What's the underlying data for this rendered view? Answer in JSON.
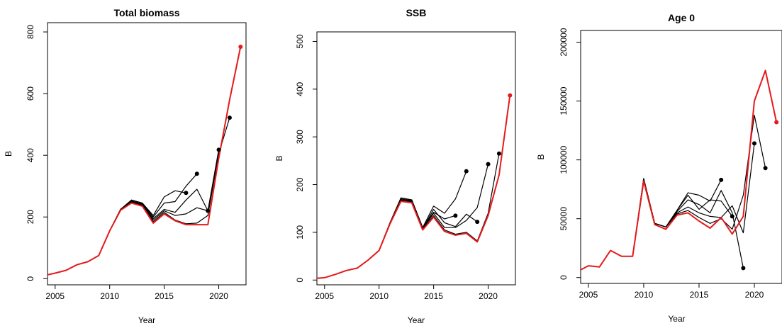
{
  "chart_data": [
    {
      "type": "line",
      "title": "Total biomass",
      "xlabel": "Year",
      "ylabel": "B",
      "xlim": [
        2004.3,
        2022.5
      ],
      "ylim": [
        -20,
        830
      ],
      "xticks": [
        "2005",
        "2010",
        "2015",
        "2020"
      ],
      "yticks": [
        "0",
        "200",
        "400",
        "600",
        "800"
      ],
      "series": [
        {
          "role": "peel",
          "color": "#000000",
          "x": [
            2004,
            2005,
            2006,
            2007,
            2008,
            2009,
            2010,
            2011,
            2012,
            2013,
            2014,
            2015,
            2016,
            2017
          ],
          "y": [
            10,
            18,
            27,
            45,
            55,
            75,
            155,
            225,
            255,
            245,
            205,
            265,
            285,
            278
          ]
        },
        {
          "role": "peel",
          "color": "#000000",
          "x": [
            2004,
            2005,
            2006,
            2007,
            2008,
            2009,
            2010,
            2011,
            2012,
            2013,
            2014,
            2015,
            2016,
            2017,
            2018
          ],
          "y": [
            10,
            18,
            27,
            45,
            55,
            75,
            155,
            225,
            255,
            245,
            200,
            245,
            250,
            300,
            340
          ]
        },
        {
          "role": "peel",
          "color": "#000000",
          "x": [
            2004,
            2005,
            2006,
            2007,
            2008,
            2009,
            2010,
            2011,
            2012,
            2013,
            2014,
            2015,
            2016,
            2017,
            2018,
            2019
          ],
          "y": [
            10,
            18,
            27,
            45,
            55,
            75,
            155,
            225,
            252,
            242,
            195,
            225,
            215,
            255,
            290,
            220
          ]
        },
        {
          "role": "peel",
          "color": "#000000",
          "x": [
            2004,
            2005,
            2006,
            2007,
            2008,
            2009,
            2010,
            2011,
            2012,
            2013,
            2014,
            2015,
            2016,
            2017,
            2018,
            2019,
            2020
          ],
          "y": [
            10,
            18,
            27,
            45,
            55,
            75,
            155,
            225,
            250,
            240,
            190,
            220,
            205,
            210,
            230,
            220,
            418
          ]
        },
        {
          "role": "peel",
          "color": "#000000",
          "x": [
            2004,
            2005,
            2006,
            2007,
            2008,
            2009,
            2010,
            2011,
            2012,
            2013,
            2014,
            2015,
            2016,
            2017,
            2018,
            2019,
            2020,
            2021
          ],
          "y": [
            10,
            18,
            27,
            45,
            55,
            75,
            155,
            225,
            248,
            238,
            185,
            215,
            190,
            178,
            180,
            205,
            405,
            522
          ]
        },
        {
          "role": "current",
          "color": "#e41a1c",
          "x": [
            2004,
            2005,
            2006,
            2007,
            2008,
            2009,
            2010,
            2011,
            2012,
            2013,
            2014,
            2015,
            2016,
            2017,
            2018,
            2019,
            2020,
            2021,
            2022
          ],
          "y": [
            10,
            18,
            27,
            45,
            55,
            75,
            155,
            222,
            245,
            235,
            180,
            210,
            188,
            175,
            175,
            175,
            390,
            580,
            752
          ]
        }
      ]
    },
    {
      "type": "line",
      "title": "SSB",
      "xlabel": "Year",
      "ylabel": "B",
      "xlim": [
        2004.3,
        2022.5
      ],
      "ylim": [
        -10,
        520
      ],
      "xticks": [
        "2005",
        "2010",
        "2015",
        "2020"
      ],
      "yticks": [
        "0",
        "100",
        "200",
        "300",
        "400",
        "500"
      ],
      "series": [
        {
          "role": "peel",
          "color": "#000000",
          "x": [
            2004,
            2005,
            2006,
            2007,
            2008,
            2009,
            2010,
            2011,
            2012,
            2013,
            2014,
            2015,
            2016,
            2017
          ],
          "y": [
            3,
            5,
            12,
            20,
            25,
            42,
            62,
            120,
            172,
            168,
            110,
            142,
            128,
            135
          ]
        },
        {
          "role": "peel",
          "color": "#000000",
          "x": [
            2004,
            2005,
            2006,
            2007,
            2008,
            2009,
            2010,
            2011,
            2012,
            2013,
            2014,
            2015,
            2016,
            2017,
            2018
          ],
          "y": [
            3,
            5,
            12,
            20,
            25,
            42,
            62,
            120,
            172,
            168,
            110,
            155,
            140,
            170,
            228
          ]
        },
        {
          "role": "peel",
          "color": "#000000",
          "x": [
            2004,
            2005,
            2006,
            2007,
            2008,
            2009,
            2010,
            2011,
            2012,
            2013,
            2014,
            2015,
            2016,
            2017,
            2018,
            2019
          ],
          "y": [
            3,
            5,
            12,
            20,
            25,
            42,
            62,
            120,
            170,
            166,
            108,
            148,
            120,
            112,
            138,
            122
          ]
        },
        {
          "role": "peel",
          "color": "#000000",
          "x": [
            2004,
            2005,
            2006,
            2007,
            2008,
            2009,
            2010,
            2011,
            2012,
            2013,
            2014,
            2015,
            2016,
            2017,
            2018,
            2019,
            2020
          ],
          "y": [
            3,
            5,
            12,
            20,
            25,
            42,
            62,
            120,
            168,
            165,
            107,
            140,
            110,
            110,
            125,
            152,
            243
          ]
        },
        {
          "role": "peel",
          "color": "#000000",
          "x": [
            2004,
            2005,
            2006,
            2007,
            2008,
            2009,
            2010,
            2011,
            2012,
            2013,
            2014,
            2015,
            2016,
            2017,
            2018,
            2019,
            2020,
            2021
          ],
          "y": [
            3,
            5,
            12,
            20,
            25,
            42,
            62,
            120,
            167,
            164,
            106,
            135,
            105,
            96,
            100,
            82,
            140,
            265
          ]
        },
        {
          "role": "current",
          "color": "#e41a1c",
          "x": [
            2004,
            2005,
            2006,
            2007,
            2008,
            2009,
            2010,
            2011,
            2012,
            2013,
            2014,
            2015,
            2016,
            2017,
            2018,
            2019,
            2020,
            2021,
            2022
          ],
          "y": [
            3,
            5,
            12,
            20,
            25,
            42,
            62,
            118,
            165,
            162,
            105,
            132,
            102,
            94,
            98,
            80,
            135,
            220,
            387
          ]
        }
      ]
    },
    {
      "type": "line",
      "title": "Age  0",
      "xlabel": "Year",
      "ylabel": "B",
      "xlim": [
        2004.3,
        2022.5
      ],
      "ylim": [
        -5000,
        210000
      ],
      "xticks": [
        "2005",
        "2010",
        "2015",
        "2020"
      ],
      "yticks": [
        "0",
        "50000",
        "100000",
        "150000",
        "200000"
      ],
      "series": [
        {
          "role": "peel",
          "color": "#000000",
          "x": [
            2004,
            2005,
            2006,
            2007,
            2008,
            2009,
            2010,
            2011,
            2012,
            2013,
            2014,
            2015,
            2016,
            2017
          ],
          "y": [
            5000,
            10000,
            9000,
            23000,
            18000,
            18000,
            84000,
            46000,
            43000,
            57000,
            72000,
            70000,
            65000,
            83000
          ]
        },
        {
          "role": "peel",
          "color": "#000000",
          "x": [
            2004,
            2005,
            2006,
            2007,
            2008,
            2009,
            2010,
            2011,
            2012,
            2013,
            2014,
            2015,
            2016,
            2017,
            2018
          ],
          "y": [
            5000,
            10000,
            9000,
            23000,
            18000,
            18000,
            84000,
            46000,
            43000,
            57000,
            70000,
            58000,
            66000,
            65000,
            52000
          ]
        },
        {
          "role": "peel",
          "color": "#000000",
          "x": [
            2004,
            2005,
            2006,
            2007,
            2008,
            2009,
            2010,
            2011,
            2012,
            2013,
            2014,
            2015,
            2016,
            2017,
            2018,
            2019
          ],
          "y": [
            5000,
            10000,
            9000,
            23000,
            18000,
            18000,
            84000,
            46000,
            43000,
            56000,
            66000,
            62000,
            55000,
            74000,
            55000,
            8000
          ]
        },
        {
          "role": "peel",
          "color": "#000000",
          "x": [
            2004,
            2005,
            2006,
            2007,
            2008,
            2009,
            2010,
            2011,
            2012,
            2013,
            2014,
            2015,
            2016,
            2017,
            2018,
            2019,
            2020
          ],
          "y": [
            5000,
            10000,
            9000,
            23000,
            18000,
            18000,
            84000,
            46000,
            43000,
            55000,
            60000,
            55000,
            52000,
            51000,
            61000,
            38000,
            114000
          ]
        },
        {
          "role": "peel",
          "color": "#000000",
          "x": [
            2004,
            2005,
            2006,
            2007,
            2008,
            2009,
            2010,
            2011,
            2012,
            2013,
            2014,
            2015,
            2016,
            2017,
            2018,
            2019,
            2020,
            2021
          ],
          "y": [
            5000,
            10000,
            9000,
            23000,
            18000,
            18000,
            84000,
            46000,
            43000,
            54000,
            57000,
            51000,
            46000,
            50000,
            41000,
            70000,
            138000,
            93000
          ]
        },
        {
          "role": "current",
          "color": "#e41a1c",
          "x": [
            2004,
            2005,
            2006,
            2007,
            2008,
            2009,
            2010,
            2011,
            2012,
            2013,
            2014,
            2015,
            2016,
            2017,
            2018,
            2019,
            2020,
            2021,
            2022
          ],
          "y": [
            5000,
            10000,
            9000,
            23000,
            18000,
            18000,
            82000,
            45000,
            41000,
            53000,
            55000,
            48000,
            42000,
            51000,
            37000,
            52000,
            150000,
            176000,
            132000
          ]
        }
      ]
    }
  ]
}
